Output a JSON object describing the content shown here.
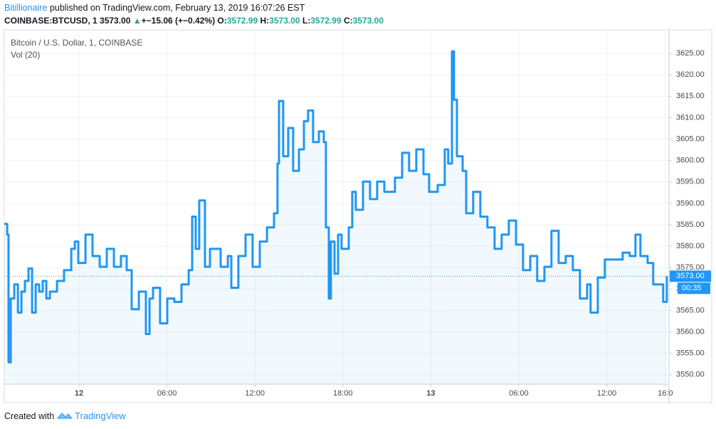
{
  "header": {
    "author": "Bitillionaire",
    "published": "published on TradingView.com, February 13, 2019 16:07:26 EST",
    "symbol": "COINBASE:BTCUSD, 1",
    "price": "3573.00",
    "arrow": "▲",
    "change": "+−15.06 (+−0.42%)",
    "o_label": "O:",
    "o": "3572.99",
    "h_label": "H:",
    "h": "3573.00",
    "l_label": "L:",
    "l": "3572.99",
    "c_label": "C:",
    "c": "3573.00"
  },
  "footer": {
    "created": "Created with",
    "brand": "TradingView"
  },
  "chart_data": {
    "type": "line",
    "title": "Bitcoin / U.S. Dollar, 1, COINBASE",
    "subtitle": "Vol (20)",
    "color": "#2196f3",
    "grid": true,
    "x": [
      -5.1,
      -4.9,
      -4.81,
      -4.66,
      -4.42,
      -4.17,
      -3.93,
      -3.69,
      -3.45,
      -3.2,
      -2.96,
      -2.72,
      -2.48,
      -2.23,
      -1.99,
      -1.5,
      -1.02,
      -0.53,
      -0.29,
      -0.05,
      0.44,
      0.92,
      1.41,
      1.89,
      2.38,
      2.86,
      3.25,
      3.59,
      4.08,
      4.56,
      4.81,
      5.05,
      5.53,
      6.02,
      6.5,
      6.99,
      7.48,
      7.72,
      7.96,
      8.2,
      8.59,
      8.93,
      9.66,
      10.15,
      10.39,
      10.87,
      11.36,
      11.84,
      12.33,
      12.82,
      13.3,
      13.54,
      13.64,
      13.93,
      14.27,
      14.61,
      15.0,
      15.34,
      15.63,
      15.97,
      16.36,
      16.7,
      16.84,
      17.04,
      17.18,
      17.43,
      17.67,
      17.91,
      18.4,
      18.64,
      18.88,
      19.37,
      19.85,
      20.34,
      20.83,
      21.55,
      22.04,
      22.52,
      23.01,
      23.5,
      23.88,
      24.47,
      24.95,
      25.19,
      25.44,
      25.58,
      25.78,
      26.17,
      26.41,
      26.89,
      27.38,
      27.86,
      28.35,
      28.83,
      29.32,
      29.81,
      30.29,
      30.78,
      31.26,
      31.75,
      32.23,
      32.72,
      33.2,
      33.69,
      34.17,
      34.66,
      34.9,
      35.39,
      35.87,
      36.36,
      37.09,
      37.57,
      37.96,
      38.3,
      38.79,
      39.17,
      39.51,
      39.85,
      40.1
    ],
    "values": [
      3585.2,
      3582.7,
      3552.9,
      3567.8,
      3571.1,
      3564.5,
      3569.4,
      3571.9,
      3574.8,
      3564.5,
      3571.1,
      3569.4,
      3571.9,
      3567.8,
      3569.4,
      3571.9,
      3574.4,
      3579.4,
      3581.1,
      3576.1,
      3582.7,
      3577.7,
      3575.2,
      3579.4,
      3575.2,
      3577.7,
      3574.4,
      3565.3,
      3569.4,
      3559.5,
      3567.8,
      3570.3,
      3562.0,
      3567.8,
      3567.0,
      3571.1,
      3574.4,
      3586.9,
      3579.4,
      3590.7,
      3575.2,
      3579.4,
      3575.2,
      3577.7,
      3570.3,
      3577.7,
      3582.7,
      3575.2,
      3581.1,
      3584.4,
      3587.7,
      3599.3,
      3613.9,
      3601.0,
      3607.6,
      3597.6,
      3602.6,
      3609.2,
      3611.7,
      3604.3,
      3606.8,
      3604.3,
      3584.4,
      3567.8,
      3581.1,
      3573.6,
      3582.7,
      3579.4,
      3584.4,
      3592.7,
      3588.5,
      3595.1,
      3591.0,
      3595.1,
      3592.7,
      3596.0,
      3601.8,
      3597.6,
      3602.6,
      3596.8,
      3592.7,
      3594.3,
      3602.6,
      3599.3,
      3625.5,
      3614.2,
      3601.0,
      3597.6,
      3587.7,
      3592.7,
      3586.9,
      3584.4,
      3579.4,
      3582.7,
      3586.0,
      3580.4,
      3574.4,
      3577.7,
      3571.9,
      3575.2,
      3583.6,
      3576.1,
      3577.7,
      3574.4,
      3567.8,
      3571.1,
      3564.5,
      3572.7,
      3576.9,
      3576.9,
      3578.5,
      3577.7,
      3582.7,
      3577.7,
      3576.1,
      3571.1,
      3571.1,
      3567.0,
      3573.0
    ],
    "xlim": [
      -5.1,
      40.25
    ],
    "xticks": [
      {
        "value": 0,
        "label": "12"
      },
      {
        "value": 6,
        "label": "06:00"
      },
      {
        "value": 12,
        "label": "12:00"
      },
      {
        "value": 18,
        "label": "18:00"
      },
      {
        "value": 24,
        "label": "13"
      },
      {
        "value": 30,
        "label": "06:00"
      },
      {
        "value": 36,
        "label": "12:00"
      },
      {
        "value": 40,
        "label": "16:0"
      }
    ],
    "ylim": [
      3547.8,
      3630.5
    ],
    "yticks": [
      {
        "value": 3550,
        "label": "3550.00"
      },
      {
        "value": 3555,
        "label": "3555.00"
      },
      {
        "value": 3560,
        "label": "3560.00"
      },
      {
        "value": 3565,
        "label": "3565.00"
      },
      {
        "value": 3570,
        "label": "3570.00"
      },
      {
        "value": 3575,
        "label": "3575.00"
      },
      {
        "value": 3580,
        "label": "3580.00"
      },
      {
        "value": 3585,
        "label": "3585.00"
      },
      {
        "value": 3590,
        "label": "3590.00"
      },
      {
        "value": 3595,
        "label": "3595.00"
      },
      {
        "value": 3600,
        "label": "3600.00"
      },
      {
        "value": 3605,
        "label": "3605.00"
      },
      {
        "value": 3610,
        "label": "3610.00"
      },
      {
        "value": 3615,
        "label": "3615.00"
      },
      {
        "value": 3620,
        "label": "3620.00"
      },
      {
        "value": 3625,
        "label": "3625.00"
      }
    ],
    "last_price": {
      "value": 3573,
      "label": "3573.00"
    },
    "countdown": "00:35"
  }
}
